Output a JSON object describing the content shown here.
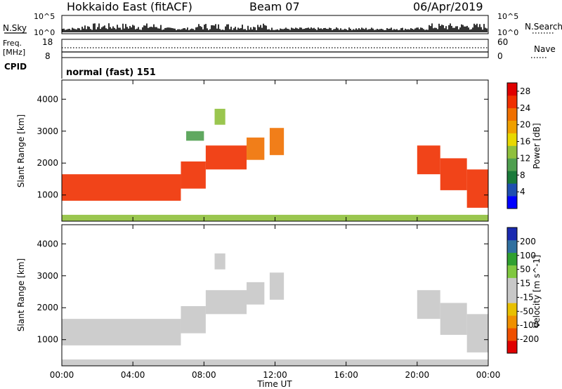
{
  "header": {
    "station": "Hokkaido East (fitACF)",
    "beam": "Beam 07",
    "date": "06/Apr/2019"
  },
  "strips": {
    "nsky": {
      "left_label": "N.Sky",
      "left_ticks": [
        "10^5",
        "10^0"
      ],
      "right_label": "N.Search",
      "right_ticks": [
        "10^5",
        "10^0"
      ]
    },
    "freq": {
      "left_label_1": "Freq.",
      "left_label_2": "[MHz]",
      "left_ticks": [
        "18",
        "8"
      ],
      "right_label": "Nave",
      "right_ticks": [
        "60",
        "0"
      ]
    },
    "cpid": {
      "label": "CPID",
      "value": "normal (fast) 151"
    }
  },
  "colors": {
    "power_scale": [
      "#0000ff",
      "#1f4fb0",
      "#1a7a3a",
      "#4f9f4f",
      "#8fc03c",
      "#e8d800",
      "#f0a000",
      "#f07000",
      "#f03000",
      "#e00000"
    ],
    "velocity_scale": [
      "#e00000",
      "#f05000",
      "#f09000",
      "#e8c000",
      "#c8c8c8",
      "#c8c8c8",
      "#80c840",
      "#30a030",
      "#3070a0",
      "#1a2ab0"
    ]
  },
  "chart_data": [
    {
      "type": "heatmap",
      "xlabel": "",
      "ylabel": "Slant Range [km]",
      "x_ticks": [
        "00:00",
        "04:00",
        "08:00",
        "12:00",
        "16:00",
        "20:00",
        "00:00"
      ],
      "xlim_hours": [
        0,
        24
      ],
      "y_ticks": [
        1000,
        2000,
        3000,
        4000
      ],
      "ylim": [
        180,
        4600
      ],
      "colorbar": {
        "label": "Power [dB]",
        "ticks": [
          4,
          8,
          12,
          16,
          20,
          24,
          28
        ],
        "range": [
          0,
          30
        ]
      },
      "regions": [
        {
          "start": 0.0,
          "end": 6.7,
          "low": 820,
          "high": 1650,
          "value": 26
        },
        {
          "start": 6.7,
          "end": 8.1,
          "low": 1200,
          "high": 2050,
          "value": 25
        },
        {
          "start": 8.1,
          "end": 10.4,
          "low": 1800,
          "high": 2550,
          "value": 24
        },
        {
          "start": 10.4,
          "end": 11.4,
          "low": 2100,
          "high": 2800,
          "value": 22
        },
        {
          "start": 11.7,
          "end": 12.5,
          "low": 2250,
          "high": 3100,
          "value": 21
        },
        {
          "start": 20.0,
          "end": 21.3,
          "low": 1650,
          "high": 2550,
          "value": 24
        },
        {
          "start": 21.3,
          "end": 22.8,
          "low": 1150,
          "high": 2150,
          "value": 25
        },
        {
          "start": 22.8,
          "end": 24.0,
          "low": 600,
          "high": 1800,
          "value": 26
        },
        {
          "start": 8.6,
          "end": 9.2,
          "low": 3200,
          "high": 3700,
          "value": 14
        },
        {
          "start": 7.0,
          "end": 8.0,
          "low": 2700,
          "high": 3000,
          "value": 10
        },
        {
          "start": 0.0,
          "end": 24.0,
          "low": 180,
          "high": 380,
          "value": 12
        }
      ]
    },
    {
      "type": "heatmap",
      "xlabel": "Time UT",
      "ylabel": "Slant Range [km]",
      "x_ticks": [
        "00:00",
        "04:00",
        "08:00",
        "12:00",
        "16:00",
        "20:00",
        "00:00"
      ],
      "xlim_hours": [
        0,
        24
      ],
      "y_ticks": [
        1000,
        2000,
        3000,
        4000
      ],
      "ylim": [
        180,
        4600
      ],
      "colorbar": {
        "label": "Velocity [m s^-1]",
        "ticks": [
          -200,
          -100,
          -50,
          -15,
          15,
          50,
          100,
          200
        ],
        "range": [
          -250,
          250
        ]
      },
      "regions": [
        {
          "start": 0.0,
          "end": 6.7,
          "low": 820,
          "high": 1650,
          "value": 0
        },
        {
          "start": 6.7,
          "end": 8.1,
          "low": 1200,
          "high": 2050,
          "value": 0
        },
        {
          "start": 8.1,
          "end": 10.4,
          "low": 1800,
          "high": 2550,
          "value": -5
        },
        {
          "start": 10.4,
          "end": 11.4,
          "low": 2100,
          "high": 2800,
          "value": -20
        },
        {
          "start": 11.7,
          "end": 12.5,
          "low": 2250,
          "high": 3100,
          "value": 0
        },
        {
          "start": 20.0,
          "end": 21.3,
          "low": 1650,
          "high": 2550,
          "value": 0
        },
        {
          "start": 21.3,
          "end": 22.8,
          "low": 1150,
          "high": 2150,
          "value": 0
        },
        {
          "start": 22.8,
          "end": 24.0,
          "low": 600,
          "high": 1800,
          "value": 0
        },
        {
          "start": 8.6,
          "end": 9.2,
          "low": 3200,
          "high": 3700,
          "value": 40
        },
        {
          "start": 0.0,
          "end": 24.0,
          "low": 180,
          "high": 380,
          "value": 30
        }
      ]
    }
  ]
}
